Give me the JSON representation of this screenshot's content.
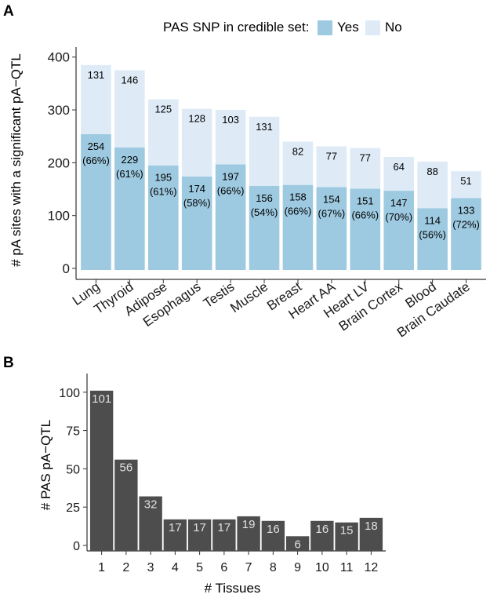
{
  "figure": {
    "panel_a_label": "A",
    "panel_b_label": "B"
  },
  "chart_data": [
    {
      "type": "bar",
      "stacked": true,
      "title": "",
      "legend_title": "PAS SNP in credible set:",
      "legend_placement": "top",
      "xlabel": "",
      "ylabel": "# pA sites with a significant pA−QTL",
      "ylim": [
        0,
        410
      ],
      "yticks": [
        0,
        100,
        200,
        300,
        400
      ],
      "categories": [
        "Lung",
        "Thyroid",
        "Adipose",
        "Esophagus",
        "Testis",
        "Muscle",
        "Breast",
        "Heart AA",
        "Heart LV",
        "Brain Cortex",
        "Blood",
        "Brain Caudate"
      ],
      "series": [
        {
          "name": "Yes",
          "color": "#9ecae1",
          "values": [
            254,
            229,
            195,
            174,
            197,
            156,
            158,
            154,
            151,
            147,
            114,
            133
          ],
          "percent_labels": [
            "(66%)",
            "(61%)",
            "(61%)",
            "(58%)",
            "(66%)",
            "(54%)",
            "(66%)",
            "(67%)",
            "(66%)",
            "(70%)",
            "(56%)",
            "(72%)"
          ]
        },
        {
          "name": "No",
          "color": "#deebf7",
          "values": [
            131,
            146,
            125,
            128,
            103,
            131,
            82,
            77,
            77,
            64,
            88,
            51
          ]
        }
      ]
    },
    {
      "type": "bar",
      "title": "",
      "xlabel": "# Tissues",
      "ylabel": "# PAS pA−QTL",
      "ylim": [
        0,
        105
      ],
      "yticks": [
        0,
        25,
        50,
        75,
        100
      ],
      "categories": [
        "1",
        "2",
        "3",
        "4",
        "5",
        "6",
        "7",
        "8",
        "9",
        "10",
        "11",
        "12"
      ],
      "values": [
        101,
        56,
        32,
        17,
        17,
        17,
        19,
        16,
        6,
        16,
        15,
        18
      ],
      "color": "#4d4d4d"
    }
  ]
}
